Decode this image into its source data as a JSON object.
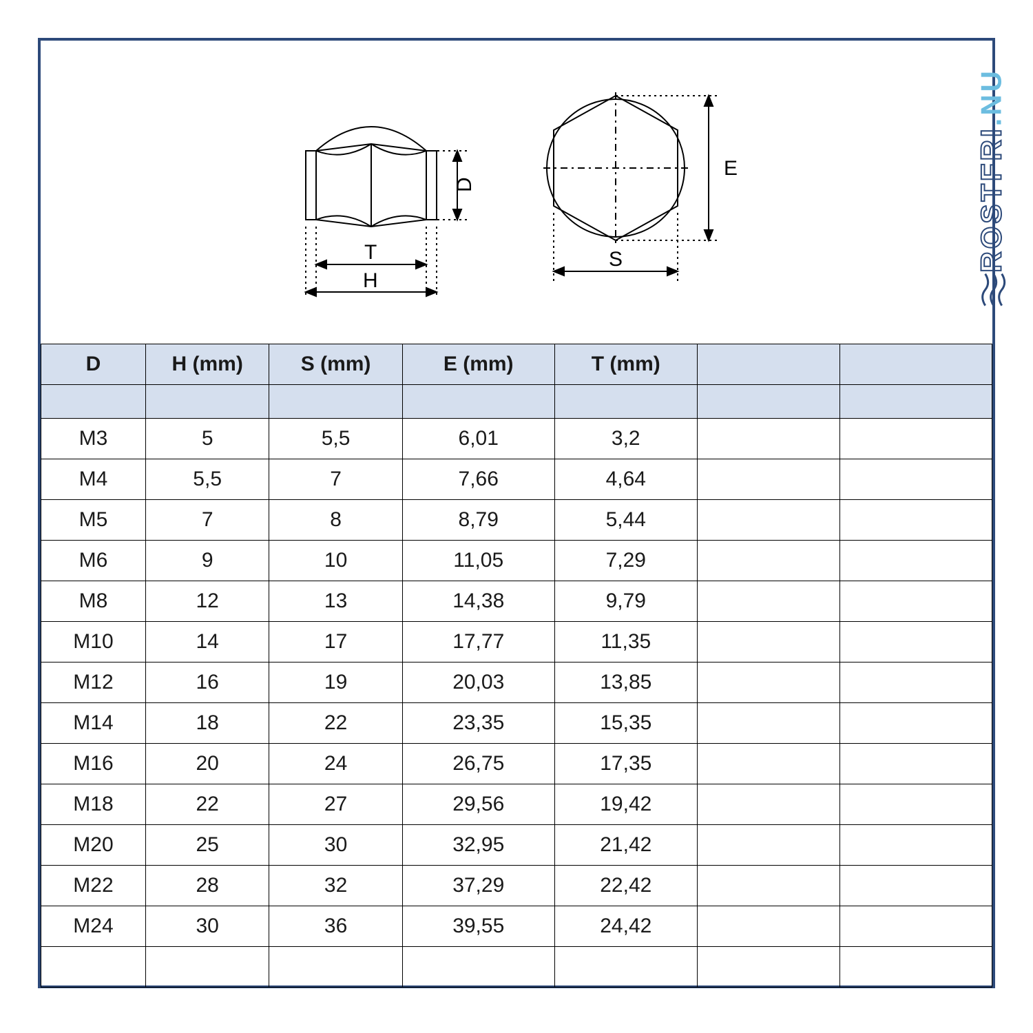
{
  "brand": {
    "part1": "ROSTFRI",
    "part2": ".NU"
  },
  "diagram": {
    "labels": {
      "D": "D",
      "T": "T",
      "H": "H",
      "S": "S",
      "E": "E"
    },
    "stroke": "#000000",
    "dash": "2,4",
    "stroke_width": 2
  },
  "table": {
    "header_bg": "#d5dfee",
    "border_color": "#000000",
    "font_size": 30,
    "columns": [
      "D",
      "H (mm)",
      "S (mm)",
      "E (mm)",
      "T (mm)",
      "",
      ""
    ],
    "column_widths_pct": [
      11,
      13,
      14,
      16,
      15,
      15,
      16
    ],
    "rows": [
      [
        "M3",
        "5",
        "5,5",
        "6,01",
        "3,2",
        "",
        ""
      ],
      [
        "M4",
        "5,5",
        "7",
        "7,66",
        "4,64",
        "",
        ""
      ],
      [
        "M5",
        "7",
        "8",
        "8,79",
        "5,44",
        "",
        ""
      ],
      [
        "M6",
        "9",
        "10",
        "11,05",
        "7,29",
        "",
        ""
      ],
      [
        "M8",
        "12",
        "13",
        "14,38",
        "9,79",
        "",
        ""
      ],
      [
        "M10",
        "14",
        "17",
        "17,77",
        "11,35",
        "",
        ""
      ],
      [
        "M12",
        "16",
        "19",
        "20,03",
        "13,85",
        "",
        ""
      ],
      [
        "M14",
        "18",
        "22",
        "23,35",
        "15,35",
        "",
        ""
      ],
      [
        "M16",
        "20",
        "24",
        "26,75",
        "17,35",
        "",
        ""
      ],
      [
        "M18",
        "22",
        "27",
        "29,56",
        "19,42",
        "",
        ""
      ],
      [
        "M20",
        "25",
        "30",
        "32,95",
        "21,42",
        "",
        ""
      ],
      [
        "M22",
        "28",
        "32",
        "37,29",
        "22,42",
        "",
        ""
      ],
      [
        "M24",
        "30",
        "36",
        "39,55",
        "24,42",
        "",
        ""
      ],
      [
        "",
        "",
        "",
        "",
        "",
        "",
        ""
      ]
    ]
  }
}
